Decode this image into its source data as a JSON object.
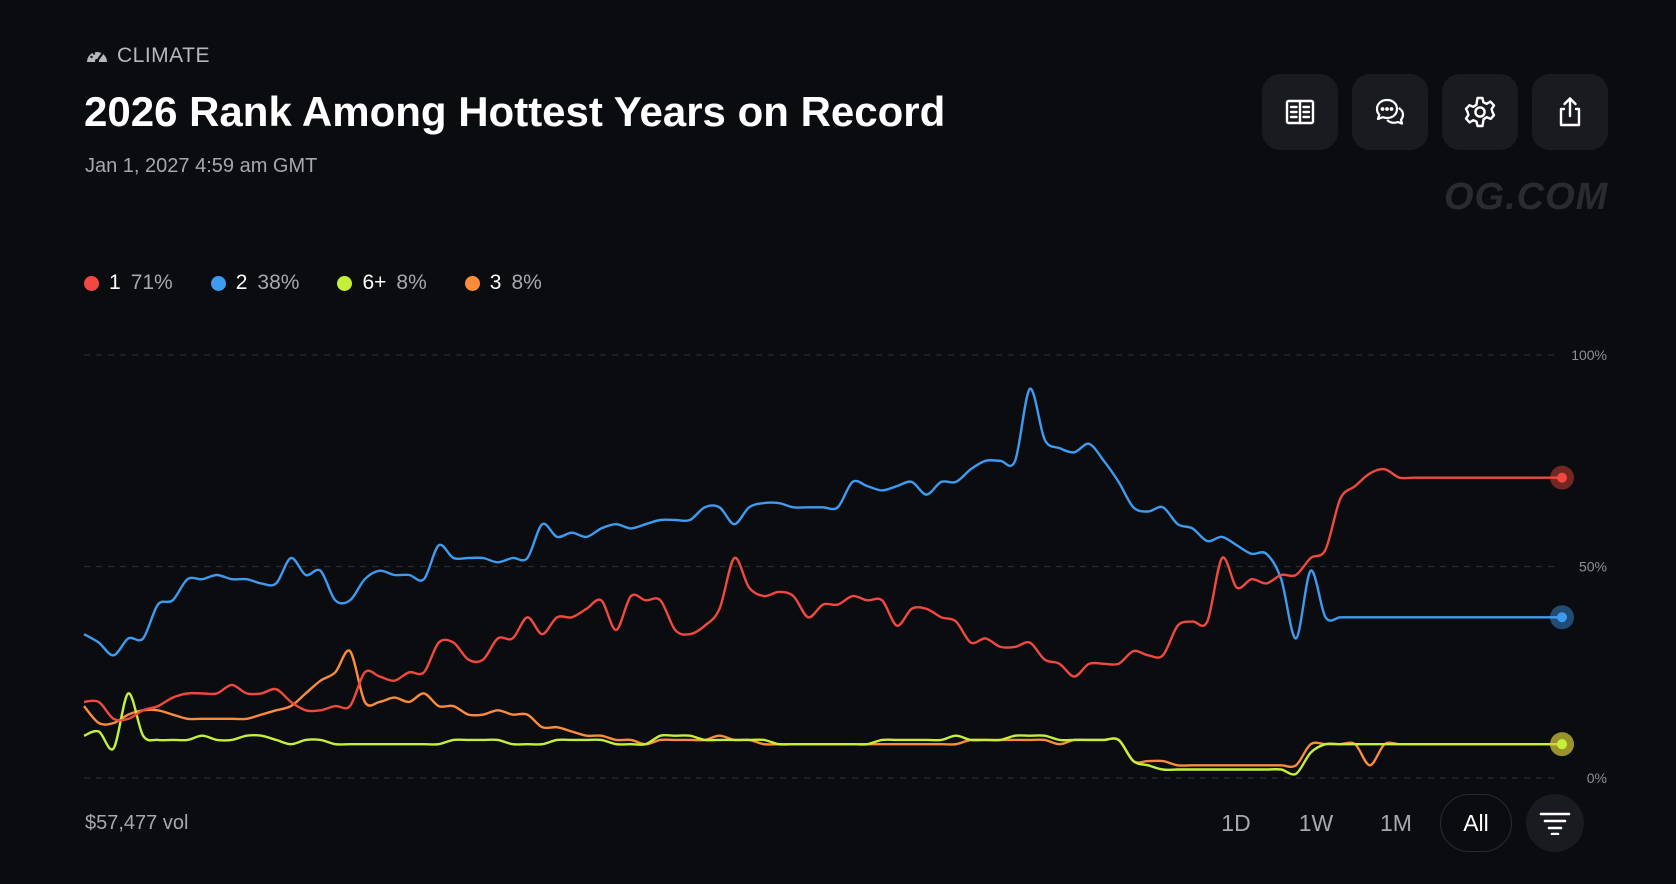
{
  "header": {
    "category": "CLIMATE",
    "title": "2026 Rank Among Hottest Years on Record",
    "date": "Jan 1, 2027 4:59 am GMT",
    "watermark": "OG.COM"
  },
  "toolbar": {
    "buttons": [
      {
        "name": "rules-button",
        "icon": "document-icon"
      },
      {
        "name": "comments-button",
        "icon": "chat-icon"
      },
      {
        "name": "settings-button",
        "icon": "gear-icon"
      },
      {
        "name": "share-button",
        "icon": "share-icon"
      }
    ]
  },
  "legend": [
    {
      "label": "1",
      "pct": "71%",
      "color": "#f1493f"
    },
    {
      "label": "2",
      "pct": "38%",
      "color": "#3d9bf0"
    },
    {
      "label": "6+",
      "pct": "8%",
      "color": "#c5f03a"
    },
    {
      "label": "3",
      "pct": "8%",
      "color": "#fb8c3c"
    }
  ],
  "footer": {
    "volume": "$57,477 vol",
    "ranges": [
      "1D",
      "1W",
      "1M",
      "All"
    ],
    "active_range": "All"
  },
  "chart_data": {
    "type": "line",
    "title": "",
    "xlabel": "",
    "ylabel": "",
    "ylim": [
      0,
      100
    ],
    "y_ticks": [
      {
        "value": 0,
        "label": "0%"
      },
      {
        "value": 50,
        "label": "50%"
      },
      {
        "value": 100,
        "label": "100%"
      }
    ],
    "grid": "horizontal-dashed",
    "x": [
      0,
      1,
      2,
      3,
      4,
      5,
      6,
      7,
      8,
      9,
      10,
      11,
      12,
      13,
      14,
      15,
      16,
      17,
      18,
      19,
      20,
      21,
      22,
      23,
      24,
      25,
      26,
      27,
      28,
      29,
      30,
      31,
      32,
      33,
      34,
      35,
      36,
      37,
      38,
      39,
      40,
      41,
      42,
      43,
      44,
      45,
      46,
      47,
      48,
      49,
      50,
      51,
      52,
      53,
      54,
      55,
      56,
      57,
      58,
      59,
      60,
      61,
      62,
      63,
      64,
      65,
      66,
      67,
      68,
      69,
      70,
      71,
      72,
      73,
      74,
      75,
      76,
      77,
      78,
      79,
      80,
      81,
      82,
      83,
      84,
      85,
      86,
      87,
      88,
      89,
      90,
      91,
      92,
      93,
      94,
      95,
      96,
      97,
      98,
      99,
      100
    ],
    "series": [
      {
        "name": "1",
        "color": "#f1493f",
        "values": [
          18,
          18,
          14,
          14,
          16,
          17,
          19,
          20,
          20,
          20,
          22,
          20,
          20,
          21,
          18,
          16,
          16,
          17,
          17,
          25,
          24,
          23,
          25,
          25,
          32,
          32,
          28,
          28,
          33,
          33,
          38,
          34,
          38,
          38,
          40,
          42,
          35,
          43,
          42,
          42,
          35,
          34,
          36,
          40,
          52,
          45,
          43,
          44,
          43,
          38,
          41,
          41,
          43,
          42,
          42,
          36,
          40,
          40,
          38,
          37,
          32,
          33,
          31,
          31,
          32,
          28,
          27,
          24,
          27,
          27,
          27,
          30,
          29,
          29,
          36,
          37,
          37,
          52,
          45,
          47,
          46,
          48,
          48,
          52,
          54,
          66,
          69,
          72,
          73,
          71,
          71,
          71,
          71,
          71,
          71,
          71,
          71,
          71,
          71,
          71,
          71
        ]
      },
      {
        "name": "2",
        "color": "#3d9bf0",
        "values": [
          34,
          32,
          29,
          33,
          33,
          41,
          42,
          47,
          47,
          48,
          47,
          47,
          46,
          46,
          52,
          48,
          49,
          42,
          42,
          47,
          49,
          48,
          48,
          47,
          55,
          52,
          52,
          52,
          51,
          52,
          52,
          60,
          57,
          58,
          57,
          59,
          60,
          59,
          60,
          61,
          61,
          61,
          64,
          64,
          60,
          64,
          65,
          65,
          64,
          64,
          64,
          64,
          70,
          69,
          68,
          69,
          70,
          67,
          70,
          70,
          73,
          75,
          75,
          75,
          92,
          80,
          78,
          77,
          79,
          75,
          70,
          64,
          63,
          64,
          60,
          59,
          56,
          57,
          55,
          53,
          53,
          47,
          33,
          49,
          38,
          38,
          38,
          38,
          38,
          38,
          38,
          38,
          38,
          38,
          38,
          38,
          38,
          38,
          38,
          38,
          38
        ]
      },
      {
        "name": "6+",
        "color": "#c5f03a",
        "values": [
          10,
          11,
          7,
          20,
          10,
          9,
          9,
          9,
          10,
          9,
          9,
          10,
          10,
          9,
          8,
          9,
          9,
          8,
          8,
          8,
          8,
          8,
          8,
          8,
          8,
          9,
          9,
          9,
          9,
          8,
          8,
          8,
          9,
          9,
          9,
          9,
          8,
          8,
          8,
          10,
          10,
          10,
          9,
          9,
          9,
          9,
          9,
          8,
          8,
          8,
          8,
          8,
          8,
          8,
          9,
          9,
          9,
          9,
          9,
          10,
          9,
          9,
          9,
          10,
          10,
          10,
          9,
          9,
          9,
          9,
          9,
          4,
          3,
          2,
          2,
          2,
          2,
          2,
          2,
          2,
          2,
          2,
          1,
          6,
          8,
          8,
          8,
          8,
          8,
          8,
          8,
          8,
          8,
          8,
          8,
          8,
          8,
          8,
          8,
          8,
          8
        ]
      },
      {
        "name": "3",
        "color": "#fb8c3c",
        "values": [
          17,
          13,
          13,
          15,
          16,
          16,
          15,
          14,
          14,
          14,
          14,
          14,
          15,
          16,
          17,
          20,
          23,
          25,
          30,
          18,
          18,
          19,
          18,
          20,
          17,
          17,
          15,
          15,
          16,
          15,
          15,
          12,
          12,
          11,
          10,
          10,
          9,
          9,
          8,
          9,
          9,
          9,
          9,
          10,
          9,
          9,
          8,
          8,
          8,
          8,
          8,
          8,
          8,
          8,
          8,
          8,
          8,
          8,
          8,
          8,
          9,
          9,
          9,
          9,
          9,
          9,
          8,
          9,
          9,
          9,
          9,
          4,
          4,
          4,
          3,
          3,
          3,
          3,
          3,
          3,
          3,
          3,
          3,
          8,
          8,
          8,
          8,
          3,
          8,
          8,
          8,
          8,
          8,
          8,
          8,
          8,
          8,
          8,
          8,
          8,
          8
        ]
      }
    ]
  }
}
